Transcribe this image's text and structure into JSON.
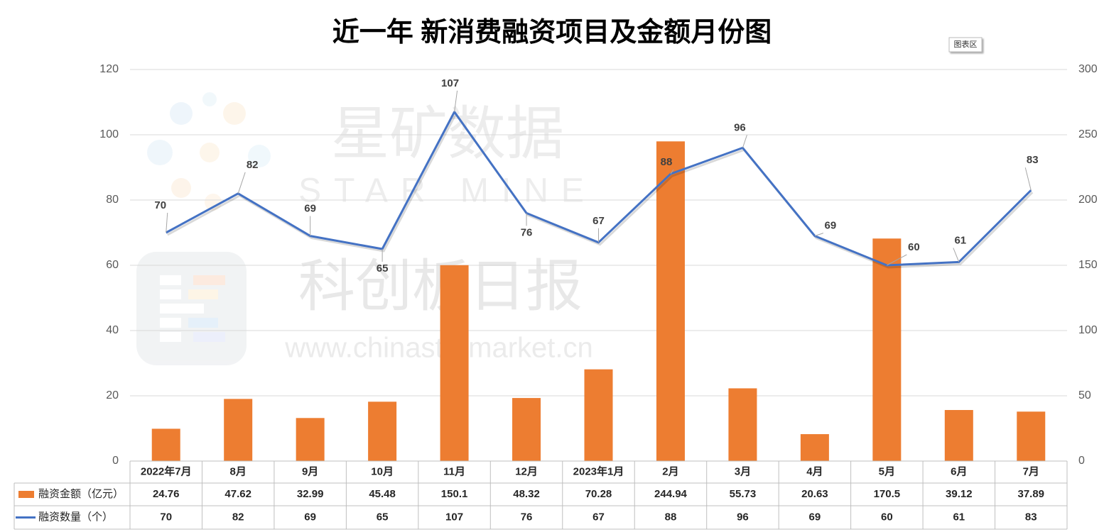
{
  "chart_data": {
    "type": "combo",
    "title": "近一年 新消费融资项目及金额月份图",
    "categories": [
      "2022年7月",
      "8月",
      "9月",
      "10月",
      "11月",
      "12月",
      "2023年1月",
      "2月",
      "3月",
      "4月",
      "5月",
      "6月",
      "7月"
    ],
    "series": [
      {
        "name": "融资金额（亿元）",
        "type": "bar",
        "axis": "y2",
        "color": "#ed7d31",
        "values": [
          24.76,
          47.62,
          32.99,
          45.48,
          150.1,
          48.32,
          70.28,
          244.94,
          55.73,
          20.63,
          170.5,
          39.12,
          37.89
        ]
      },
      {
        "name": "融资数量（个）",
        "type": "line",
        "color": "#4472c4",
        "values": [
          70,
          82,
          69,
          65,
          107,
          76,
          67,
          88,
          96,
          69,
          60,
          61,
          83
        ]
      }
    ],
    "ylim": [
      0,
      120
    ],
    "yticks": [
      0,
      20,
      40,
      60,
      80,
      100,
      120
    ],
    "y2lim": [
      0,
      300
    ],
    "y2ticks": [
      0,
      50,
      100,
      150,
      200,
      250,
      300
    ],
    "grid": true,
    "watermarks": [
      "星矿数据",
      "STAR MINE",
      "科创板日报",
      "www.chinastarmarket.cn"
    ],
    "chart_area_tooltip": "图表区"
  }
}
